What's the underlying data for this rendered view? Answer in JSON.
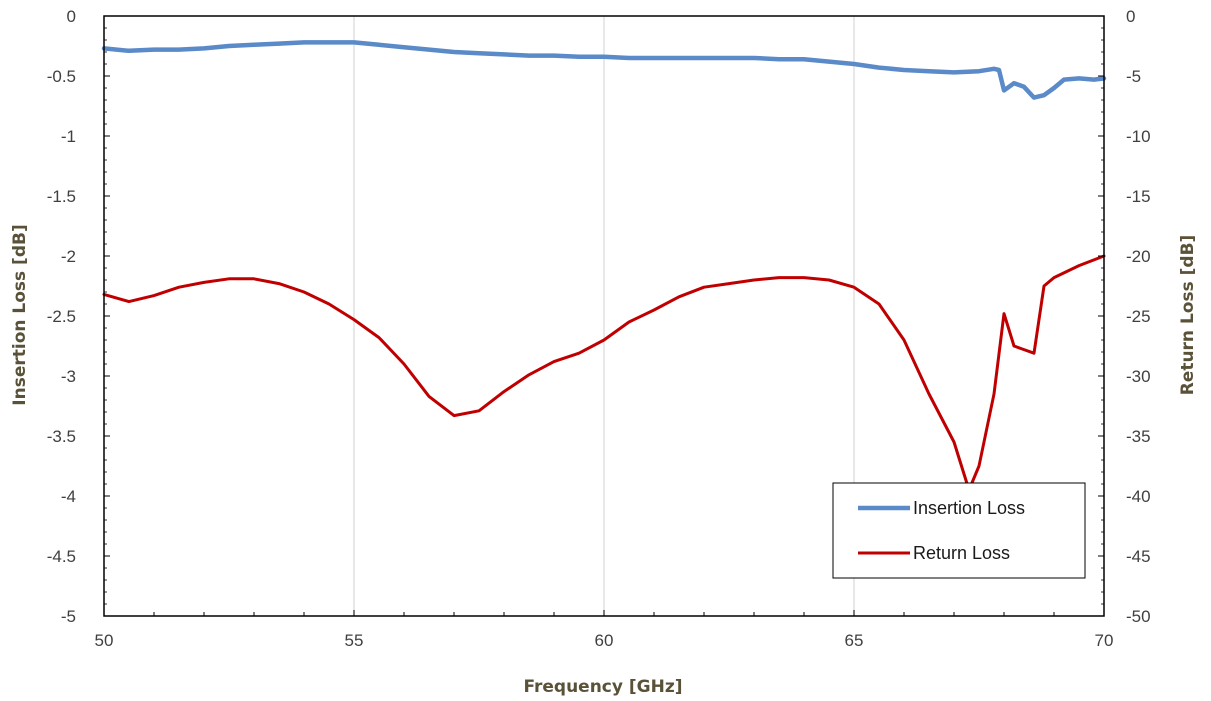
{
  "chart_data": {
    "type": "line",
    "title": "",
    "xlabel": "Frequency [GHz]",
    "ylabel_left": "Insertion Loss [dB]",
    "ylabel_right": "Return Loss [dB]",
    "xlim": [
      50,
      70
    ],
    "ylim_left": [
      -5,
      0
    ],
    "ylim_right": [
      -50,
      0
    ],
    "x_ticks": [
      "50",
      "55",
      "60",
      "65",
      "70"
    ],
    "y_ticks_left": [
      "0",
      "-0.5",
      "-1",
      "-1.5",
      "-2",
      "-2.5",
      "-3",
      "-3.5",
      "-4",
      "-4.5",
      "-5"
    ],
    "y_ticks_right": [
      "0",
      "-5",
      "-10",
      "-15",
      "-20",
      "-25",
      "-30",
      "-35",
      "-40",
      "-45",
      "-50"
    ],
    "grid": "vertical",
    "legend_position": "bottom-right",
    "series": [
      {
        "name": "Insertion Loss",
        "axis": "left",
        "color": "#5b8ac9",
        "x": [
          50,
          50.5,
          51,
          51.5,
          52,
          52.5,
          53,
          53.5,
          54,
          54.5,
          55,
          55.5,
          56,
          56.5,
          57,
          57.5,
          58,
          58.5,
          59,
          59.5,
          60,
          60.5,
          61,
          61.5,
          62,
          62.5,
          63,
          63.5,
          64,
          64.5,
          65,
          65.5,
          66,
          66.5,
          67,
          67.5,
          67.8,
          67.9,
          68,
          68.2,
          68.4,
          68.6,
          68.8,
          69,
          69.2,
          69.5,
          69.8,
          70
        ],
        "y": [
          -0.27,
          -0.29,
          -0.28,
          -0.28,
          -0.27,
          -0.25,
          -0.24,
          -0.23,
          -0.22,
          -0.22,
          -0.22,
          -0.24,
          -0.26,
          -0.28,
          -0.3,
          -0.31,
          -0.32,
          -0.33,
          -0.33,
          -0.34,
          -0.34,
          -0.35,
          -0.35,
          -0.35,
          -0.35,
          -0.35,
          -0.35,
          -0.36,
          -0.36,
          -0.38,
          -0.4,
          -0.43,
          -0.45,
          -0.46,
          -0.47,
          -0.46,
          -0.44,
          -0.45,
          -0.62,
          -0.56,
          -0.59,
          -0.68,
          -0.66,
          -0.6,
          -0.53,
          -0.52,
          -0.53,
          -0.52
        ]
      },
      {
        "name": "Return Loss",
        "axis": "right",
        "color": "#c00000",
        "x": [
          50,
          50.5,
          51,
          51.5,
          52,
          52.5,
          53,
          53.5,
          54,
          54.5,
          55,
          55.5,
          56,
          56.5,
          57,
          57.5,
          58,
          58.5,
          59,
          59.5,
          60,
          60.5,
          61,
          61.5,
          62,
          62.5,
          63,
          63.5,
          64,
          64.5,
          65,
          65.5,
          66,
          66.5,
          67,
          67.3,
          67.5,
          67.8,
          68,
          68.2,
          68.4,
          68.6,
          68.8,
          69,
          69.5,
          70
        ],
        "y": [
          -23.2,
          -23.8,
          -23.3,
          -22.6,
          -22.2,
          -21.9,
          -21.9,
          -22.3,
          -23.0,
          -24.0,
          -25.3,
          -26.8,
          -29.0,
          -31.7,
          -33.3,
          -32.9,
          -31.3,
          -29.9,
          -28.8,
          -28.1,
          -27.0,
          -25.5,
          -24.5,
          -23.4,
          -22.6,
          -22.3,
          -22.0,
          -21.8,
          -21.8,
          -22.0,
          -22.6,
          -24.0,
          -27.0,
          -31.5,
          -35.5,
          -39.5,
          -37.5,
          -31.5,
          -24.8,
          -27.5,
          -27.8,
          -28.1,
          -22.5,
          -21.8,
          -20.8,
          -20.0
        ]
      }
    ]
  }
}
